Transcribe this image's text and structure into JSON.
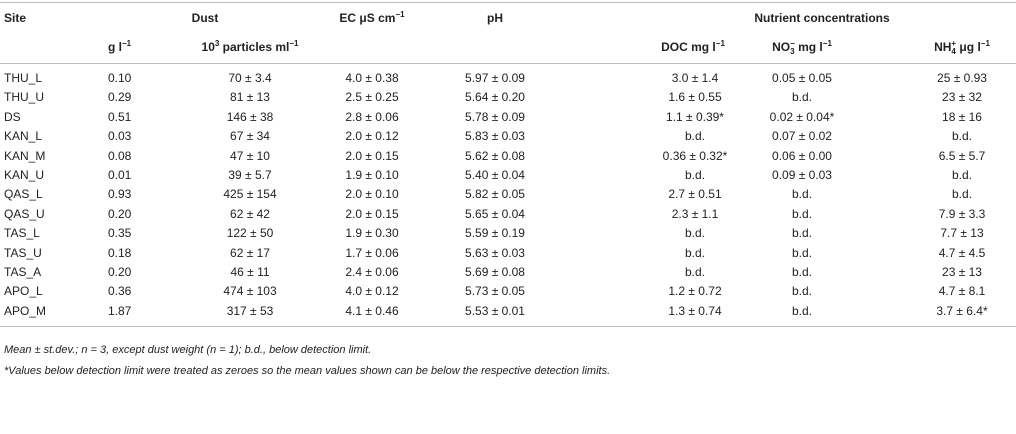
{
  "header": {
    "site": "Site",
    "dust": "Dust",
    "ec": [
      "EC μS cm",
      "−1"
    ],
    "ph": "pH",
    "nutrient": "Nutrient concentrations",
    "dust_weight": [
      "g l",
      "−1"
    ],
    "dust_particles": [
      "10",
      "3",
      " particles ml",
      "−1"
    ],
    "doc": [
      "DOC mg l",
      "−1"
    ],
    "no3": [
      "NO",
      "3",
      "−",
      " mg l",
      "−1"
    ],
    "nh4": [
      "NH",
      "4",
      "+",
      " μg l",
      "−1"
    ]
  },
  "table": {
    "rows": [
      [
        "THU_L",
        "0.10",
        "70 ± 3.4",
        "4.0 ± 0.38",
        "5.97 ± 0.09",
        "3.0 ± 1.4",
        "0.05 ± 0.05",
        "25 ± 0.93"
      ],
      [
        "THU_U",
        "0.29",
        "81 ± 13",
        "2.5 ± 0.25",
        "5.64 ± 0.20",
        "1.6 ± 0.55",
        "b.d.",
        "23 ± 32"
      ],
      [
        "DS",
        "0.51",
        "146 ± 38",
        "2.8 ± 0.06",
        "5.78 ± 0.09",
        "1.1 ± 0.39*",
        "0.02 ± 0.04*",
        "18 ± 16"
      ],
      [
        "KAN_L",
        "0.03",
        "67 ± 34",
        "2.0 ± 0.12",
        "5.83 ± 0.03",
        "b.d.",
        "0.07 ± 0.02",
        "b.d."
      ],
      [
        "KAN_M",
        "0.08",
        "47 ± 10",
        "2.0 ± 0.15",
        "5.62 ± 0.08",
        "0.36 ± 0.32*",
        "0.06 ± 0.00",
        "6.5 ± 5.7"
      ],
      [
        "KAN_U",
        "0.01",
        "39 ± 5.7",
        "1.9 ± 0.10",
        "5.40 ± 0.04",
        "b.d.",
        "0.09 ± 0.03",
        "b.d."
      ],
      [
        "QAS_L",
        "0.93",
        "425 ± 154",
        "2.0 ± 0.10",
        "5.82 ± 0.05",
        "2.7 ± 0.51",
        "b.d.",
        "b.d."
      ],
      [
        "QAS_U",
        "0.20",
        "62 ± 42",
        "2.0 ± 0.15",
        "5.65 ± 0.04",
        "2.3 ± 1.1",
        "b.d.",
        "7.9 ± 3.3"
      ],
      [
        "TAS_L",
        "0.35",
        "122 ± 50",
        "1.9 ± 0.30",
        "5.59 ± 0.19",
        "b.d.",
        "b.d.",
        "7.7 ± 13"
      ],
      [
        "TAS_U",
        "0.18",
        "62 ± 17",
        "1.7 ± 0.06",
        "5.63 ± 0.03",
        "b.d.",
        "b.d.",
        "4.7 ± 4.5"
      ],
      [
        "TAS_A",
        "0.20",
        "46 ± 11",
        "2.4 ± 0.06",
        "5.69 ± 0.08",
        "b.d.",
        "b.d.",
        "23 ± 13"
      ],
      [
        "APO_L",
        "0.36",
        "474 ± 103",
        "4.0 ± 0.12",
        "5.73 ± 0.05",
        "1.2 ± 0.72",
        "b.d.",
        "4.7 ± 8.1"
      ],
      [
        "APO_M",
        "1.87",
        "317 ± 53",
        "4.1 ± 0.46",
        "5.53 ± 0.01",
        "1.3 ± 0.74",
        "b.d.",
        "3.7 ± 6.4*"
      ]
    ]
  },
  "notes": [
    "Mean ± st.dev.; n = 3, except dust weight (n = 1); b.d., below detection limit.",
    "*Values below detection limit were treated as zeroes so the mean values shown can be below the respective detection limits."
  ]
}
